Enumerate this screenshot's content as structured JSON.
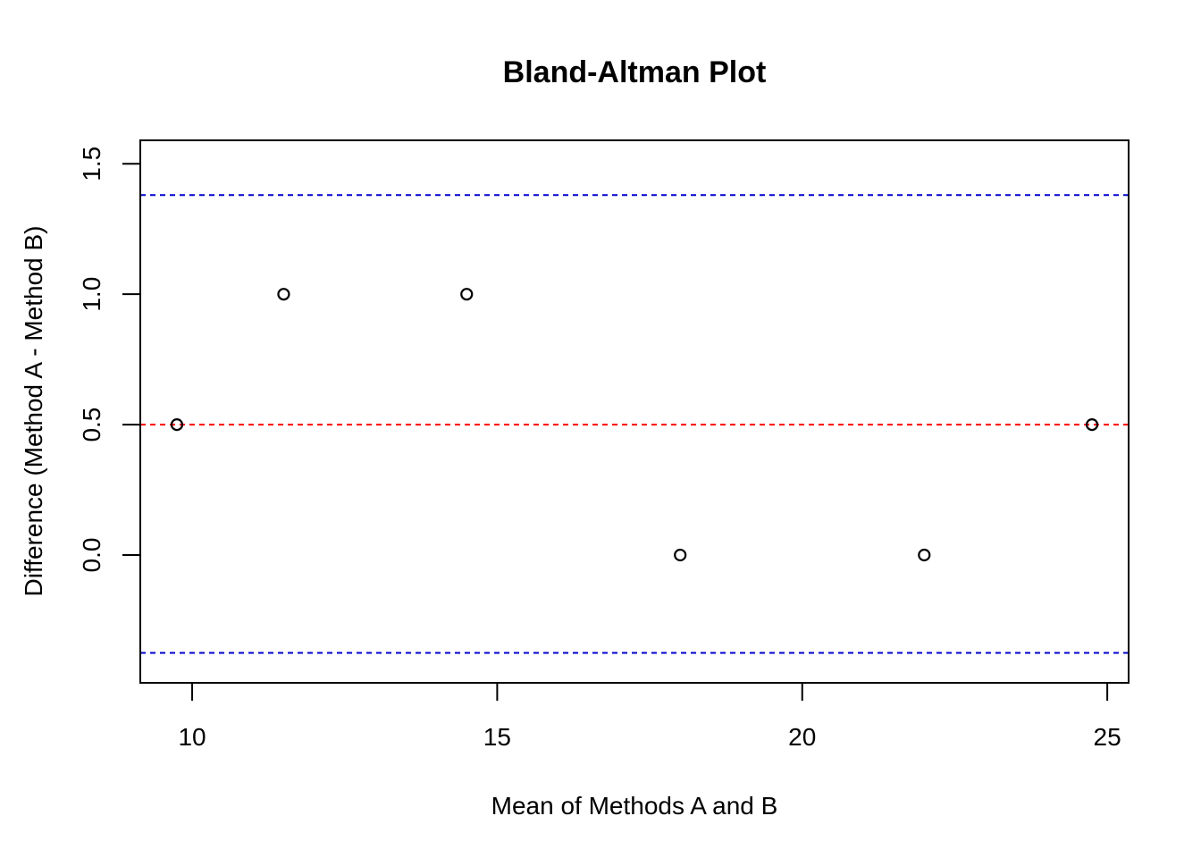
{
  "chart_data": {
    "type": "scatter",
    "title": "Bland-Altman Plot",
    "xlabel": "Mean of Methods A and B",
    "ylabel": "Difference (Method A - Method B)",
    "xlim": [
      9.15,
      25.35
    ],
    "ylim": [
      -0.49,
      1.59
    ],
    "xticks": [
      10,
      15,
      20,
      25
    ],
    "xtick_labels": [
      "10",
      "15",
      "20",
      "25"
    ],
    "yticks": [
      0.0,
      0.5,
      1.0,
      1.5
    ],
    "ytick_labels": [
      "0.0",
      "0.5",
      "1.0",
      "1.5"
    ],
    "grid": false,
    "legend": "none",
    "points": {
      "x": [
        9.75,
        11.5,
        14.5,
        18.0,
        22.0,
        24.75
      ],
      "y": [
        0.5,
        1.0,
        1.0,
        0.0,
        0.0,
        0.5
      ]
    },
    "reference_lines": [
      {
        "y": 0.5,
        "style": "dashed",
        "color": "#ff0000"
      },
      {
        "y": 1.38,
        "style": "dashed",
        "color": "#0000cd"
      },
      {
        "y": -0.375,
        "style": "dashed",
        "color": "#0000cd"
      }
    ],
    "point_color": "#000000"
  }
}
